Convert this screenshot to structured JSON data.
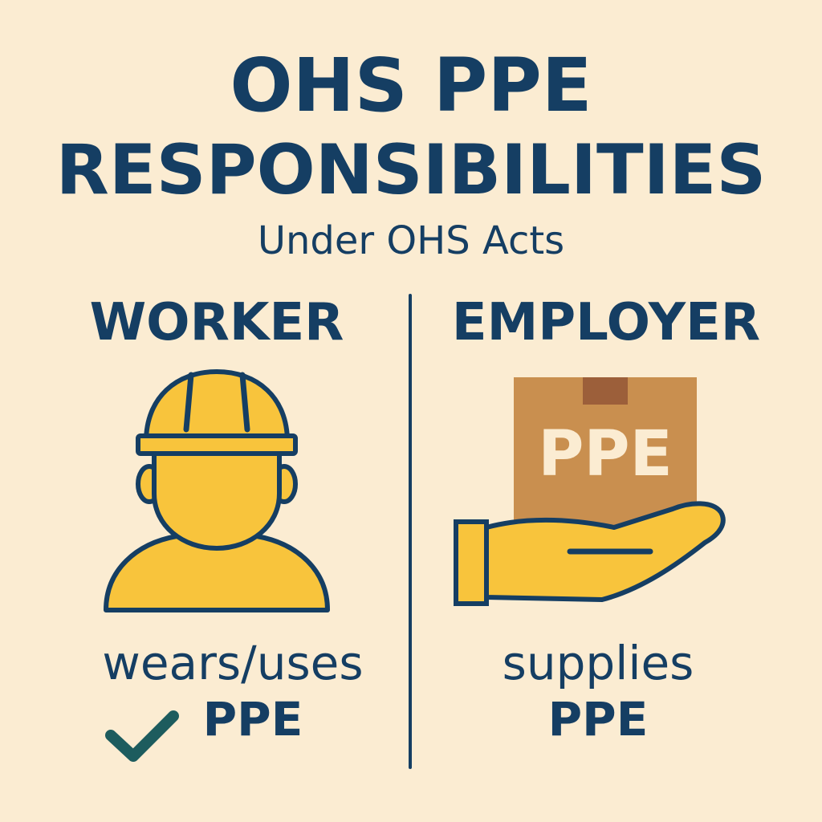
{
  "title": {
    "line1": "OHS PPE",
    "line2": "RESPONSIBILITIES"
  },
  "subtitle": "Under OHS Acts",
  "worker": {
    "heading": "WORKER",
    "caption_line1": "wears/uses",
    "caption_line2": "PPE",
    "icon": "construction-worker-hardhat-icon",
    "check_icon": "checkmark-icon"
  },
  "employer": {
    "heading": "EMPLOYER",
    "box_label": "PPE",
    "caption_line1": "supplies",
    "caption_line2": "PPE",
    "icon": "hand-holding-box-icon"
  },
  "colors": {
    "background": "#fbecd2",
    "navy": "#153e63",
    "yellow": "#f8c43c",
    "box_brown": "#c98f4f",
    "box_tape": "#9c5f3a",
    "box_text": "#fbecd2",
    "check_teal": "#1d5c5e"
  }
}
